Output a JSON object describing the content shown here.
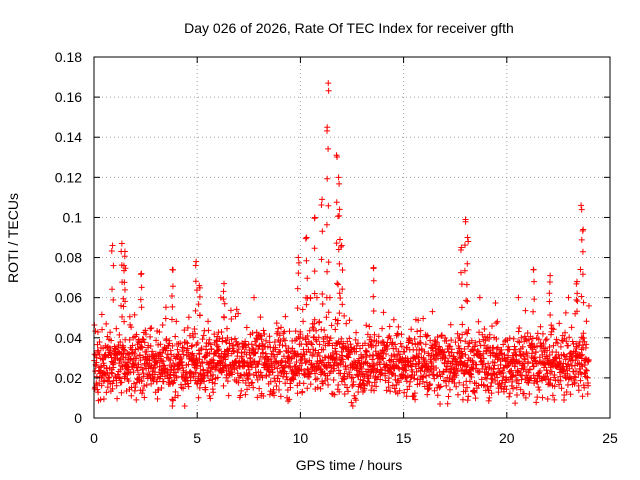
{
  "chart_data": {
    "type": "scatter",
    "title": "Day 026 of 2026, Rate Of TEC Index for receiver gfth",
    "xlabel": "GPS time / hours",
    "ylabel": "ROTI / TECUs",
    "xlim": [
      0,
      25
    ],
    "ylim": [
      0,
      0.18
    ],
    "xticks": [
      0,
      5,
      10,
      15,
      20,
      25
    ],
    "xtick_labels": [
      "0",
      "5",
      "10",
      "15",
      "20",
      "25"
    ],
    "yticks": [
      0,
      0.02,
      0.04,
      0.06,
      0.08,
      0.1,
      0.12,
      0.14,
      0.16,
      0.18
    ],
    "ytick_labels": [
      "0",
      "0.02",
      "0.04",
      "0.06",
      "0.08",
      "0.1",
      "0.12",
      "0.14",
      "0.16",
      "0.18"
    ],
    "grid": true,
    "marker": "+",
    "color": "#ff0000",
    "series": [
      {
        "name": "ROTI",
        "peaks": [
          {
            "x": 0.9,
            "y": 0.086
          },
          {
            "x": 1.35,
            "y": 0.087
          },
          {
            "x": 1.5,
            "y": 0.083
          },
          {
            "x": 1.45,
            "y": 0.076
          },
          {
            "x": 2.3,
            "y": 0.072
          },
          {
            "x": 3.8,
            "y": 0.074
          },
          {
            "x": 4.95,
            "y": 0.078
          },
          {
            "x": 5.1,
            "y": 0.066
          },
          {
            "x": 6.3,
            "y": 0.067
          },
          {
            "x": 9.9,
            "y": 0.08
          },
          {
            "x": 10.3,
            "y": 0.09
          },
          {
            "x": 10.7,
            "y": 0.1
          },
          {
            "x": 11.05,
            "y": 0.109
          },
          {
            "x": 11.3,
            "y": 0.145
          },
          {
            "x": 11.35,
            "y": 0.167
          },
          {
            "x": 11.75,
            "y": 0.131
          },
          {
            "x": 11.85,
            "y": 0.12
          },
          {
            "x": 11.9,
            "y": 0.104
          },
          {
            "x": 12.0,
            "y": 0.086
          },
          {
            "x": 13.55,
            "y": 0.075
          },
          {
            "x": 17.8,
            "y": 0.085
          },
          {
            "x": 18.0,
            "y": 0.099
          },
          {
            "x": 18.1,
            "y": 0.09
          },
          {
            "x": 21.3,
            "y": 0.074
          },
          {
            "x": 22.1,
            "y": 0.071
          },
          {
            "x": 23.6,
            "y": 0.106
          },
          {
            "x": 23.7,
            "y": 0.094
          },
          {
            "x": 23.4,
            "y": 0.068
          }
        ]
      }
    ]
  }
}
